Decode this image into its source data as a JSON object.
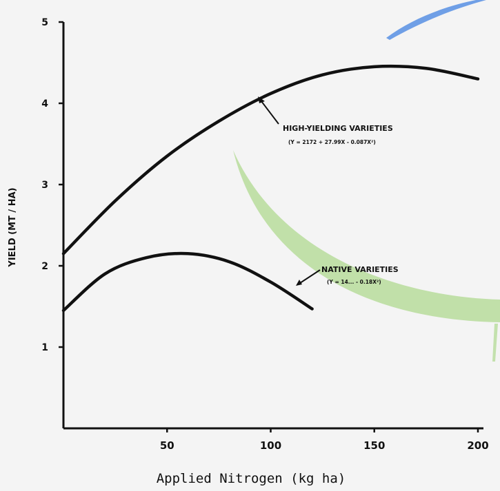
{
  "chart_data": {
    "type": "line",
    "title": "",
    "xlabel": "Applied Nitrogen (kg ha)",
    "ylabel": "YIELD (MT / HA)",
    "xlim": [
      0,
      200
    ],
    "ylim": [
      0,
      5
    ],
    "x_ticks": [
      50,
      100,
      150,
      200
    ],
    "y_ticks": [
      1,
      2,
      3,
      4,
      5
    ],
    "grid": false,
    "series": [
      {
        "name": "HIGH-YIELDING VARIETIES",
        "equation": "(Y = 2172 + 27.99X - 0.087X²)",
        "x": [
          0,
          25,
          50,
          75,
          100,
          125,
          150,
          175,
          200
        ],
        "y": [
          2.15,
          2.8,
          3.35,
          3.78,
          4.12,
          4.35,
          4.45,
          4.43,
          4.3
        ]
      },
      {
        "name": "NATIVE VARIETIES",
        "equation": "(Y = 14...  - 0.18X²)",
        "x": [
          0,
          20,
          40,
          60,
          80,
          100,
          120
        ],
        "y": [
          1.45,
          1.9,
          2.1,
          2.15,
          2.05,
          1.8,
          1.47
        ]
      }
    ],
    "overlay_colors": {
      "blue_swoosh": "#6f9fe6",
      "green_swoosh": "#b7dc9b"
    }
  }
}
